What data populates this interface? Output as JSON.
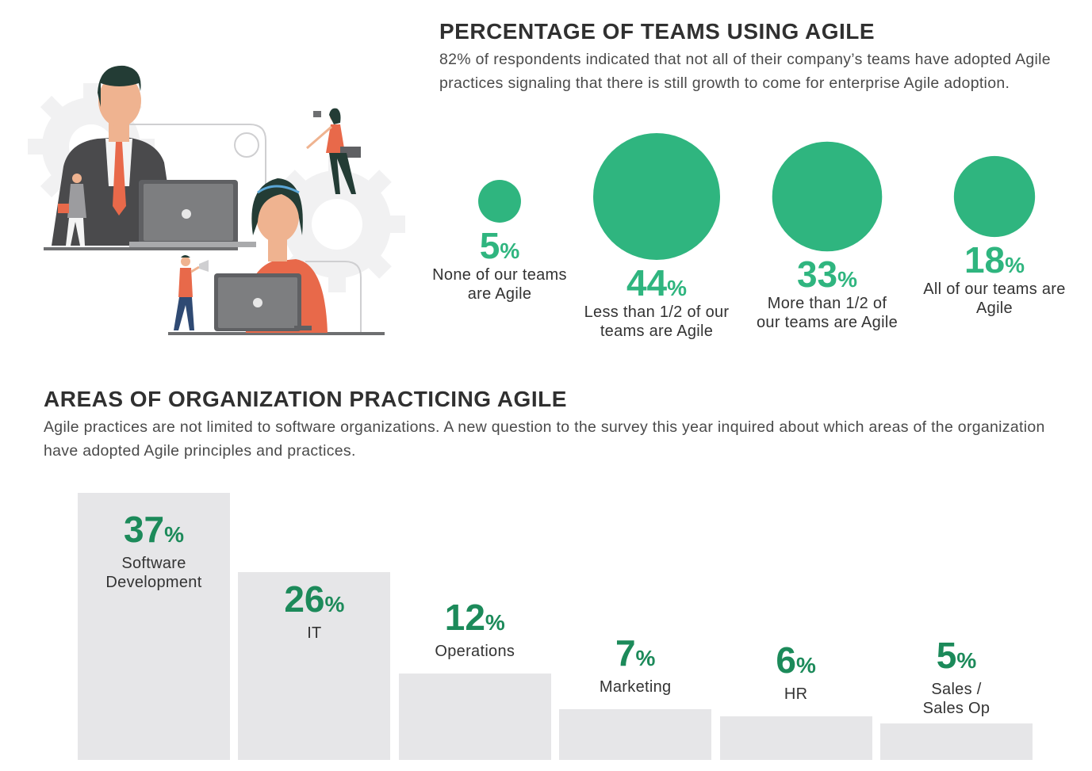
{
  "section1": {
    "title": "PERCENTAGE OF TEAMS USING AGILE",
    "description": "82% of respondents indicated that not all of their company’s teams have adopted Agile practices signaling that there is still growth to come for enterprise Agile adoption."
  },
  "section2": {
    "title": "AREAS OF ORGANIZATION PRACTICING AGILE",
    "description": "Agile practices are not limited to software organizations. A new question to the survey this year inquired about which areas of the organization have adopted Agile principles and practices."
  },
  "percent_symbol": "%",
  "colors": {
    "accent": "#2fb57f",
    "accent_dark": "#1c8a5a",
    "bar": "#e6e6e8",
    "person_shirt": "#e8694a",
    "laptop": "#7d7e80"
  },
  "illustration_icons": [
    "businessman-with-laptop-icon",
    "woman-with-laptop-icon",
    "person-with-megaphone-icon",
    "gear-icon"
  ],
  "chart_data": [
    {
      "type": "bubble",
      "title": "PERCENTAGE OF TEAMS USING AGILE",
      "categories": [
        "None of our teams are Agile",
        "Less than 1/2 of our teams are Agile",
        "More than 1/2 of our teams are Agile",
        "All of our teams are Agile"
      ],
      "values": [
        5,
        44,
        33,
        18
      ],
      "value_labels": [
        "5",
        "44",
        "33",
        "18"
      ],
      "unit": "%"
    },
    {
      "type": "bar",
      "title": "AREAS OF ORGANIZATION PRACTICING AGILE",
      "categories": [
        "Software Development",
        "IT",
        "Operations",
        "Marketing",
        "HR",
        "Sales / Sales Op"
      ],
      "values": [
        37,
        26,
        12,
        7,
        6,
        5
      ],
      "value_labels": [
        "37",
        "26",
        "12",
        "7",
        "6",
        "5"
      ],
      "unit": "%",
      "ylim": [
        0,
        37
      ]
    }
  ]
}
